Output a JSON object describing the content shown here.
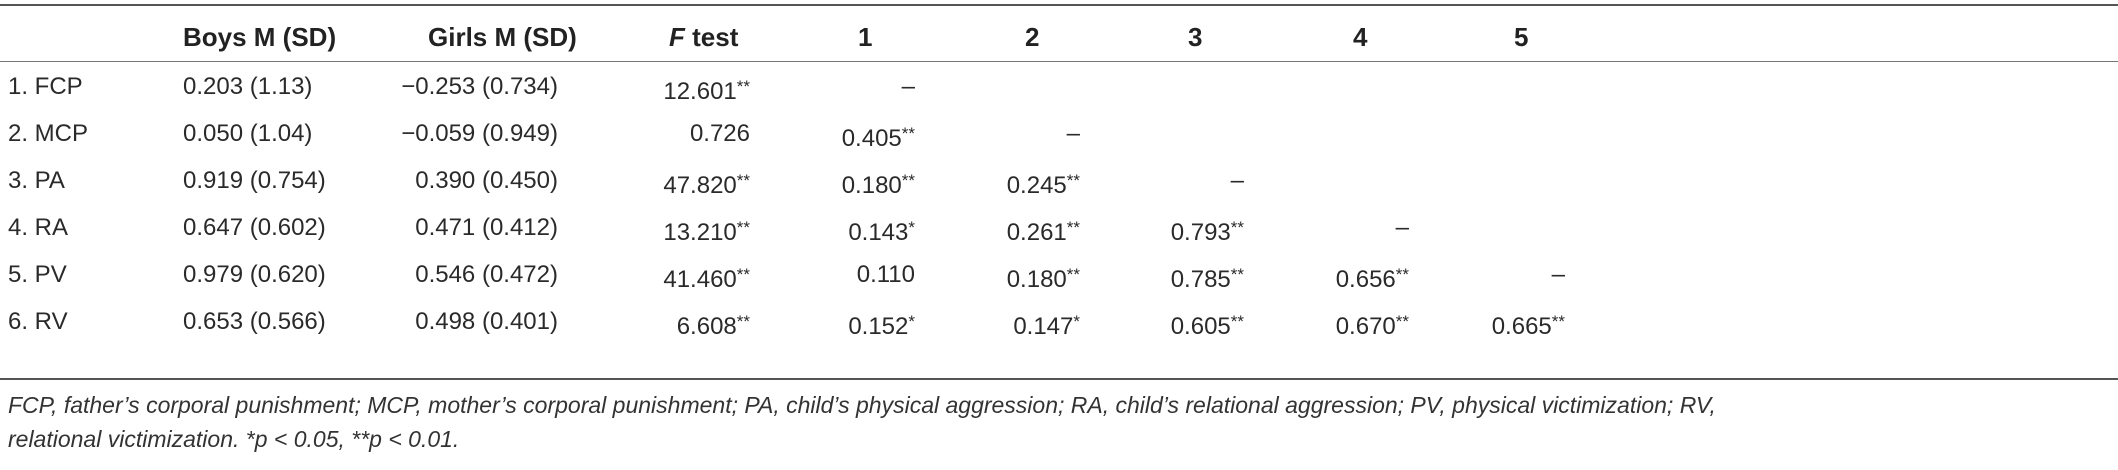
{
  "table": {
    "headers": {
      "col0": "",
      "boys": "Boys M (SD)",
      "girls": "Girls M (SD)",
      "ftest_italic": "F",
      "ftest_rest": " test",
      "c1": "1",
      "c2": "2",
      "c3": "3",
      "c4": "4",
      "c5": "5"
    },
    "rows": [
      {
        "label": "1. FCP",
        "boys": "0.203 (1.13)",
        "girls": "−0.253 (0.734)",
        "ftest": "12.601",
        "ftest_sig": "**",
        "c1": "–",
        "c1_sig": "",
        "c2": "",
        "c2_sig": "",
        "c3": "",
        "c3_sig": "",
        "c4": "",
        "c4_sig": "",
        "c5": "",
        "c5_sig": ""
      },
      {
        "label": "2. MCP",
        "boys": "0.050 (1.04)",
        "girls": "−0.059 (0.949)",
        "ftest": "0.726",
        "ftest_sig": "",
        "c1": "0.405",
        "c1_sig": "**",
        "c2": "–",
        "c2_sig": "",
        "c3": "",
        "c3_sig": "",
        "c4": "",
        "c4_sig": "",
        "c5": "",
        "c5_sig": ""
      },
      {
        "label": "3. PA",
        "boys": "0.919 (0.754)",
        "girls": "0.390 (0.450)",
        "ftest": "47.820",
        "ftest_sig": "**",
        "c1": "0.180",
        "c1_sig": "**",
        "c2": "0.245",
        "c2_sig": "**",
        "c3": "–",
        "c3_sig": "",
        "c4": "",
        "c4_sig": "",
        "c5": "",
        "c5_sig": ""
      },
      {
        "label": "4. RA",
        "boys": "0.647 (0.602)",
        "girls": "0.471 (0.412)",
        "ftest": "13.210",
        "ftest_sig": "**",
        "c1": "0.143",
        "c1_sig": "*",
        "c2": "0.261",
        "c2_sig": "**",
        "c3": "0.793",
        "c3_sig": "**",
        "c4": "–",
        "c4_sig": "",
        "c5": "",
        "c5_sig": ""
      },
      {
        "label": "5. PV",
        "boys": "0.979 (0.620)",
        "girls": "0.546 (0.472)",
        "ftest": "41.460",
        "ftest_sig": "**",
        "c1": "0.110",
        "c1_sig": "",
        "c2": "0.180",
        "c2_sig": "**",
        "c3": "0.785",
        "c3_sig": "**",
        "c4": "0.656",
        "c4_sig": "**",
        "c5": "–",
        "c5_sig": ""
      },
      {
        "label": "6. RV",
        "boys": "0.653 (0.566)",
        "girls": "0.498 (0.401)",
        "ftest": "6.608",
        "ftest_sig": "**",
        "c1": "0.152",
        "c1_sig": "*",
        "c2": "0.147",
        "c2_sig": "*",
        "c3": "0.605",
        "c3_sig": "**",
        "c4": "0.670",
        "c4_sig": "**",
        "c5": "0.665",
        "c5_sig": "**"
      }
    ],
    "footnote_line1": "FCP, father’s corporal punishment; MCP, mother’s corporal punishment; PA, child’s physical aggression; RA, child’s relational aggression; PV, physical victimization; RV,",
    "footnote_line2": "relational victimization. *p < 0.05, **p < 0.01."
  }
}
